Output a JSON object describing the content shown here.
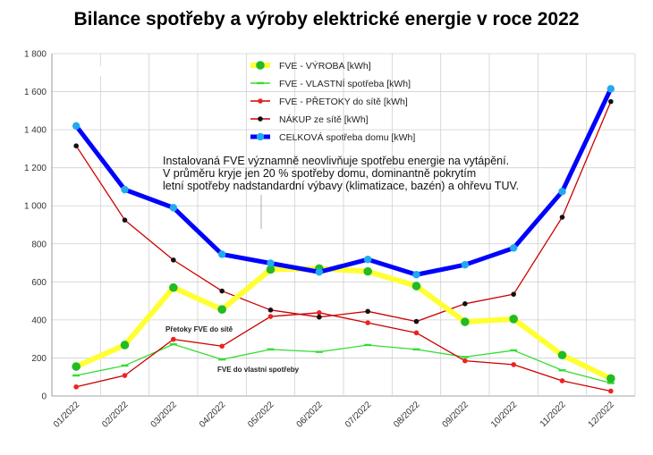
{
  "chart_data": {
    "type": "line",
    "title": "Bilance spotřeby a výroby elektrické energie v roce 2022",
    "year_label": "2022",
    "categories": [
      "01/2022",
      "02/2022",
      "03/2022",
      "04/2022",
      "05/2022",
      "06/2022",
      "07/2022",
      "08/2022",
      "09/2022",
      "10/2022",
      "11/2022",
      "12/2022"
    ],
    "y_ticks": [
      "0",
      "200",
      "400",
      "600",
      "800",
      "1 000",
      "1 200",
      "1 400",
      "1 600",
      "1 800"
    ],
    "ylim": [
      0,
      1800
    ],
    "xlabel": "",
    "ylabel": "",
    "grid": true,
    "legend_position": "top-center",
    "series": [
      {
        "name": "FVE - VÝROBA [kWh]",
        "color": "#ffff33",
        "marker": "#22bb22",
        "values": [
          155,
          268,
          570,
          455,
          665,
          670,
          655,
          578,
          390,
          405,
          215,
          92
        ]
      },
      {
        "name": "FVE - VLASTNÍ spotřeba [kWh]",
        "color": "#33dd33",
        "marker": "#33dd33",
        "values": [
          108,
          160,
          272,
          192,
          245,
          232,
          268,
          245,
          205,
          240,
          135,
          68
        ]
      },
      {
        "name": "FVE - PŘETOKY do sítě [kWh]",
        "color": "#cc0000",
        "marker": "#ee2222",
        "values": [
          48,
          108,
          298,
          262,
          418,
          438,
          385,
          332,
          185,
          165,
          80,
          26
        ]
      },
      {
        "name": "NÁKUP ze sítě [kWh]",
        "color": "#cc0000",
        "marker": "#111111",
        "values": [
          1315,
          925,
          715,
          552,
          452,
          415,
          445,
          392,
          485,
          535,
          940,
          1548
        ]
      },
      {
        "name": "CELKOVÁ spotřeba domu [kWh]",
        "color": "#0000ff",
        "marker": "#22aaee",
        "values": [
          1420,
          1085,
          990,
          745,
          698,
          652,
          718,
          638,
          690,
          778,
          1075,
          1615
        ]
      }
    ],
    "note_lines": [
      "Instalovaná FVE významně neovlivňuje spotřebu energie na vytápění.",
      "V průměru kryje jen 20 % spotřeby domu, dominantně pokrytím",
      "letní spotřeby nadstandardní výbavy (klimatizace, bazén) a ohřevu TUV."
    ],
    "annotations": {
      "pretoky": "Přetoky FVE do sítě",
      "vlastni": "FVE do vlastní spotřeby"
    }
  }
}
